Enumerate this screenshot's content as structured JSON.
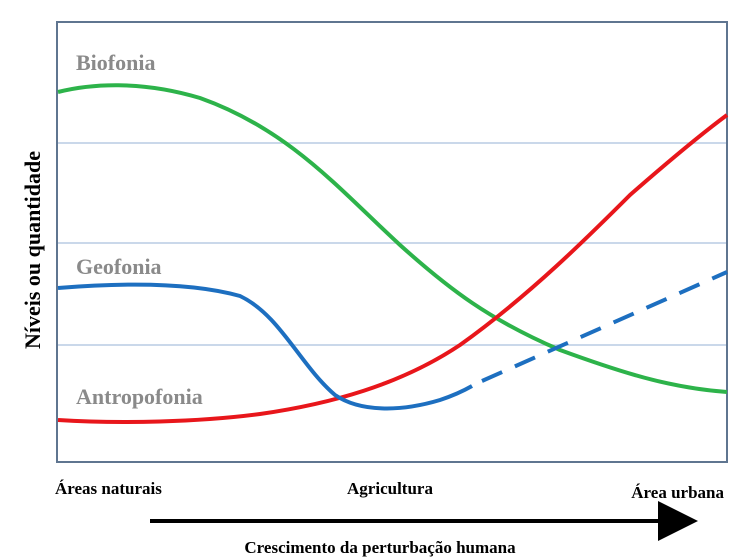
{
  "curves": {
    "biophony": "Biofonia",
    "geophony": "Geofonia",
    "anthropophony": "Antropofonia"
  },
  "y_axis_label": "Níveis ou quantidade",
  "x_labels": [
    "Áreas naturais",
    "Agricultura",
    "Área urbana"
  ],
  "x_axis_label": "Crescimento da perturbação humana"
}
